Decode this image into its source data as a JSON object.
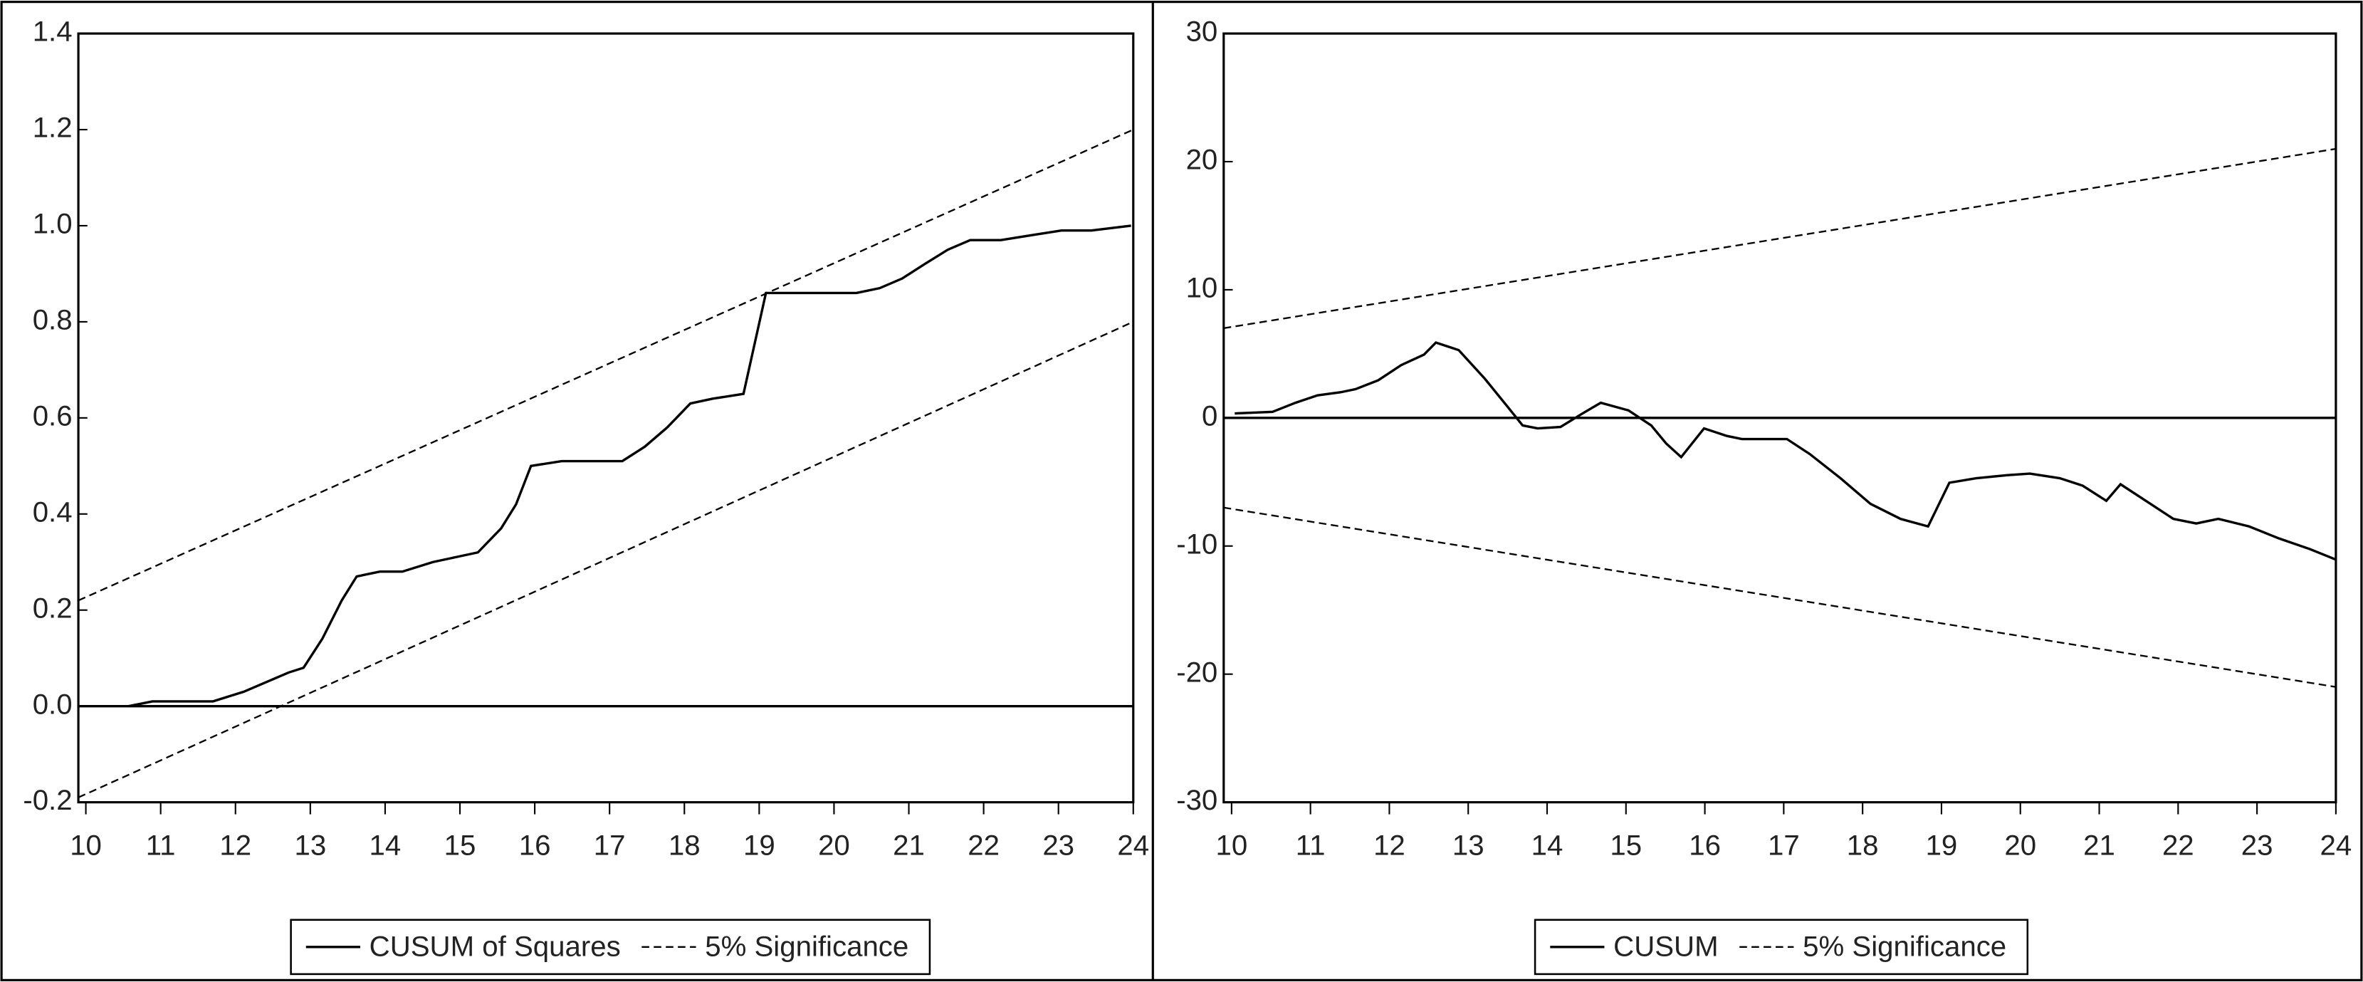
{
  "chart_data": [
    {
      "type": "line",
      "xlim": [
        9.9,
        24
      ],
      "xticks": [
        10,
        11,
        12,
        13,
        14,
        15,
        16,
        17,
        18,
        19,
        20,
        21,
        22,
        23,
        24
      ],
      "ylim": [
        -0.2,
        1.4
      ],
      "yticks": [
        -0.2,
        {
          "value": 0,
          "label": "0.0"
        },
        0.2,
        0.4,
        0.6,
        0.8,
        {
          "value": 1,
          "label": "1.0"
        },
        1.2,
        1.4
      ],
      "zero_line": true,
      "series": [
        {
          "name": "CUSUM of Squares",
          "color": "#000000",
          "dashed": false,
          "x": [
            10.57,
            10.89,
            11.3,
            11.7,
            12.11,
            12.41,
            12.71,
            12.91,
            13.16,
            13.42,
            13.62,
            13.93,
            14.23,
            14.64,
            14.94,
            15.24,
            15.55,
            15.75,
            15.95,
            16.36,
            16.96,
            17.17,
            17.47,
            17.77,
            18.08,
            18.38,
            18.79,
            19.09,
            19.8,
            20.3,
            20.61,
            20.91,
            21.21,
            21.52,
            21.82,
            22.23,
            22.63,
            23.04,
            23.44,
            23.97
          ],
          "values": [
            0,
            0.01,
            0.01,
            0.01,
            0.03,
            0.05,
            0.07,
            0.08,
            0.14,
            0.22,
            0.27,
            0.28,
            0.28,
            0.3,
            0.31,
            0.32,
            0.37,
            0.42,
            0.5,
            0.51,
            0.51,
            0.51,
            0.54,
            0.58,
            0.63,
            0.64,
            0.65,
            0.86,
            0.86,
            0.86,
            0.87,
            0.89,
            0.92,
            0.95,
            0.97,
            0.97,
            0.98,
            0.99,
            0.99,
            1.0
          ]
        },
        {
          "name": "5% Significance",
          "color": "#000000",
          "dashed": true,
          "x": [
            9.9,
            24
          ],
          "values": [
            0.22,
            1.2
          ]
        },
        {
          "color": "#000000",
          "dashed": true,
          "x": [
            9.9,
            24
          ],
          "values": [
            -0.19,
            0.8
          ]
        }
      ]
    },
    {
      "type": "line",
      "xlim": [
        9.9,
        24
      ],
      "xticks": [
        10,
        11,
        12,
        13,
        14,
        15,
        16,
        17,
        18,
        19,
        20,
        21,
        22,
        23,
        24
      ],
      "ylim": [
        -30,
        30
      ],
      "yticks": [
        -30,
        -20,
        -10,
        0,
        10,
        20,
        30
      ],
      "zero_line": true,
      "series": [
        {
          "name": "CUSUM",
          "color": "#000000",
          "dashed": false,
          "x": [
            10.04,
            10.52,
            10.81,
            11.09,
            11.38,
            11.57,
            11.86,
            12.15,
            12.44,
            12.59,
            12.88,
            13.21,
            13.49,
            13.69,
            13.88,
            14.17,
            14.45,
            14.68,
            15.03,
            15.32,
            15.51,
            15.7,
            15.99,
            16.28,
            16.47,
            17.04,
            17.33,
            17.72,
            18.1,
            18.48,
            18.83,
            19.1,
            19.44,
            19.83,
            20.12,
            20.5,
            20.79,
            21.09,
            21.27,
            21.56,
            21.94,
            22.23,
            22.51,
            22.9,
            23.28,
            23.67,
            24.0
          ],
          "values": [
            0.35,
            0.47,
            1.18,
            1.76,
            2.0,
            2.24,
            2.94,
            4.12,
            4.94,
            5.88,
            5.29,
            3.06,
            0.94,
            -0.59,
            -0.82,
            -0.71,
            0.35,
            1.18,
            0.59,
            -0.59,
            -2.0,
            -3.06,
            -0.82,
            -1.41,
            -1.65,
            -1.65,
            -2.82,
            -4.71,
            -6.71,
            -7.88,
            -8.47,
            -5.06,
            -4.71,
            -4.47,
            -4.35,
            -4.71,
            -5.29,
            -6.47,
            -5.18,
            -6.35,
            -7.88,
            -8.24,
            -7.88,
            -8.47,
            -9.41,
            -10.24,
            -11.06
          ]
        },
        {
          "name": "5% Significance",
          "color": "#000000",
          "dashed": true,
          "x": [
            9.9,
            24
          ],
          "values": [
            7,
            21
          ]
        },
        {
          "color": "#000000",
          "dashed": true,
          "x": [
            9.9,
            24
          ],
          "values": [
            -7,
            -21
          ]
        }
      ]
    }
  ]
}
